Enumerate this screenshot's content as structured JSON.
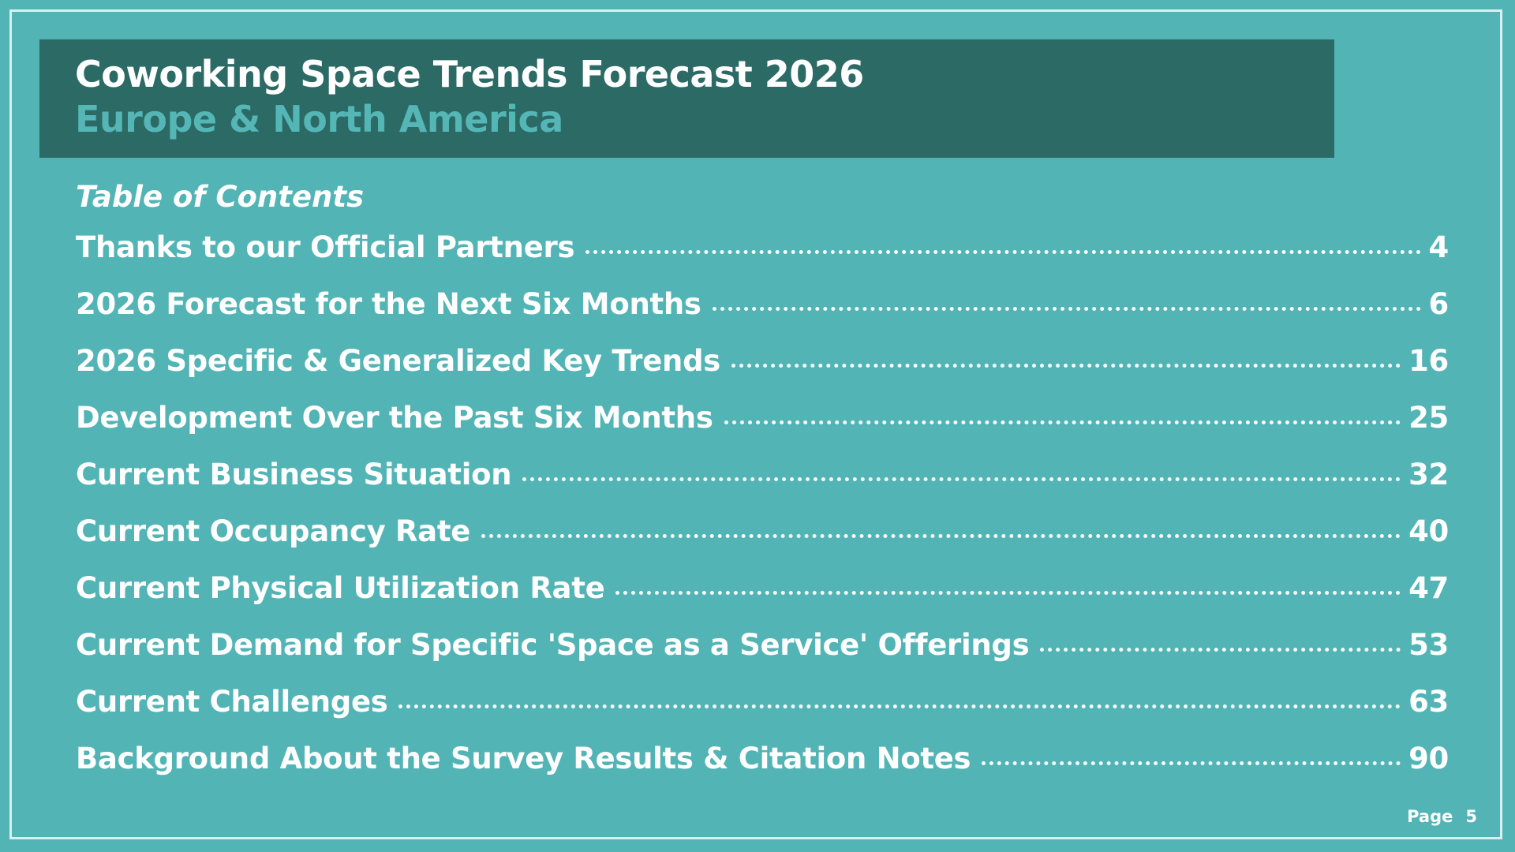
{
  "header": {
    "title": "Coworking Space Trends Forecast 2026",
    "subtitle": "Europe & North America"
  },
  "toc": {
    "heading": "Table of Contents",
    "items": [
      {
        "label": "Thanks to our Official Partners",
        "page": "4"
      },
      {
        "label": "2026 Forecast for the Next Six Months",
        "page": "6"
      },
      {
        "label": "2026 Specific & Generalized Key Trends",
        "page": "16"
      },
      {
        "label": "Development Over the Past Six Months",
        "page": "25"
      },
      {
        "label": "Current Business Situation",
        "page": "32"
      },
      {
        "label": "Current Occupancy Rate",
        "page": "40"
      },
      {
        "label": "Current Physical Utilization Rate",
        "page": "47"
      },
      {
        "label": "Current Demand for Specific 'Space as a Service' Offerings",
        "page": "53"
      },
      {
        "label": "Current Challenges",
        "page": "63"
      },
      {
        "label": "Background About the Survey Results & Citation Notes",
        "page": "90"
      }
    ]
  },
  "footer": {
    "page_label": "Page",
    "page_number": "5"
  },
  "colors": {
    "background": "#52b4b5",
    "header_band": "#2c6a66",
    "subtitle": "#55b6b6",
    "text": "#ffffff"
  }
}
